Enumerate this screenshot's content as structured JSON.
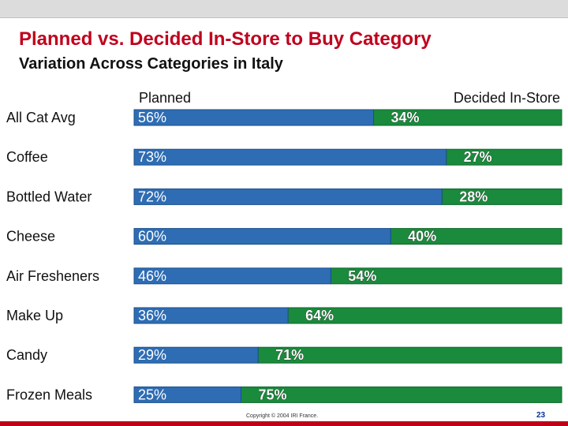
{
  "slide": {
    "title": "Planned vs. Decided In-Store to Buy Category",
    "subtitle": "Variation Across Categories in Italy",
    "copyright": "Copyright © 2004 IRI France.",
    "page_number": "23"
  },
  "chart_data": {
    "type": "bar",
    "orientation": "horizontal",
    "stacked": true,
    "title": "Planned vs. Decided In-Store to Buy Category",
    "subtitle": "Variation Across Categories in Italy",
    "categories": [
      "All Cat Avg",
      "Coffee",
      "Bottled Water",
      "Cheese",
      "Air Fresheners",
      "Make Up",
      "Candy",
      "Frozen Meals"
    ],
    "series": [
      {
        "name": "Planned",
        "color": "#2e6db4",
        "values": [
          56,
          73,
          72,
          60,
          46,
          36,
          29,
          25
        ],
        "labels": [
          "56%",
          "73%",
          "72%",
          "60%",
          "46%",
          "36%",
          "29%",
          "25%"
        ]
      },
      {
        "name": "Decided In-Store",
        "color": "#1a8a3c",
        "values": [
          34,
          27,
          28,
          40,
          54,
          64,
          71,
          75
        ],
        "labels": [
          "34%",
          "27%",
          "28%",
          "40%",
          "54%",
          "64%",
          "71%",
          "75%"
        ]
      }
    ],
    "xlim": [
      0,
      100
    ],
    "grid": false,
    "legend": "top"
  }
}
